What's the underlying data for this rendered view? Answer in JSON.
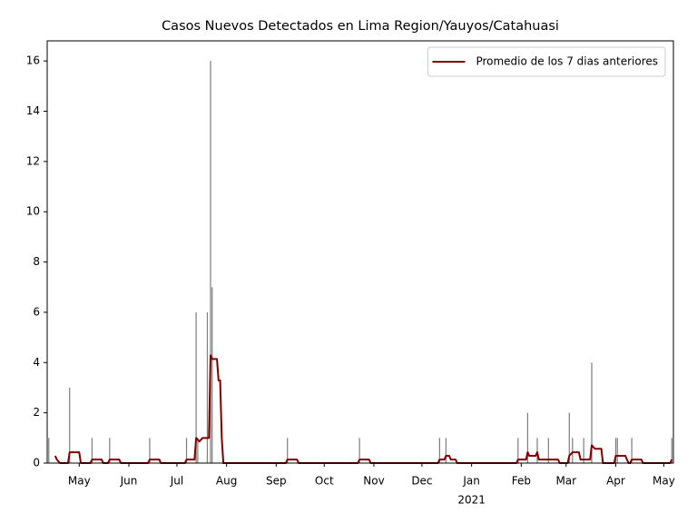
{
  "chart_data": {
    "type": "combo",
    "title": "Casos Nuevos Detectados en Lima Region/Yauyos/Catahuasi",
    "xlim": [
      "2020-04-11",
      "2021-05-07"
    ],
    "ylim": [
      0,
      16.8
    ],
    "yticks": [
      0,
      2,
      4,
      6,
      8,
      10,
      12,
      14,
      16
    ],
    "xticks": [
      {
        "value": "2020-05-01",
        "label": "May"
      },
      {
        "value": "2020-06-01",
        "label": "Jun"
      },
      {
        "value": "2020-07-01",
        "label": "Jul"
      },
      {
        "value": "2020-08-01",
        "label": "Aug"
      },
      {
        "value": "2020-09-01",
        "label": "Sep"
      },
      {
        "value": "2020-10-01",
        "label": "Oct"
      },
      {
        "value": "2020-11-01",
        "label": "Nov"
      },
      {
        "value": "2020-12-01",
        "label": "Dec"
      },
      {
        "value": "2021-01-01",
        "label": "Jan",
        "label2": "2021"
      },
      {
        "value": "2021-02-01",
        "label": "Feb"
      },
      {
        "value": "2021-03-01",
        "label": "Mar"
      },
      {
        "value": "2021-04-01",
        "label": "Apr"
      },
      {
        "value": "2021-05-01",
        "label": "May"
      }
    ],
    "legend": "upper right",
    "series": [
      {
        "type": "bar",
        "color": "#808080",
        "x": [
          "2020-04-12",
          "2020-04-25",
          "2020-05-09",
          "2020-05-20",
          "2020-06-14",
          "2020-07-07",
          "2020-07-13",
          "2020-07-14",
          "2020-07-20",
          "2020-07-22",
          "2020-07-23",
          "2020-09-08",
          "2020-10-23",
          "2020-12-12",
          "2020-12-16",
          "2021-01-30",
          "2021-02-05",
          "2021-02-11",
          "2021-02-18",
          "2021-03-03",
          "2021-03-05",
          "2021-03-12",
          "2021-03-17",
          "2021-04-01",
          "2021-04-02",
          "2021-04-11",
          "2021-05-06"
        ],
        "values": [
          1,
          3,
          1,
          1,
          1,
          1,
          6,
          1,
          6,
          16,
          7,
          1,
          1,
          1,
          1,
          1,
          2,
          1,
          1,
          2,
          1,
          1,
          4,
          1,
          1,
          1,
          1
        ]
      },
      {
        "type": "line",
        "name": "Promedio de los 7 dias anteriores",
        "color": "#800000",
        "x": [
          "2020-04-16",
          "2020-04-17",
          "2020-04-19",
          "2020-04-24",
          "2020-04-25",
          "2020-05-01",
          "2020-05-02",
          "2020-05-08",
          "2020-05-09",
          "2020-05-15",
          "2020-05-16",
          "2020-05-19",
          "2020-05-20",
          "2020-05-26",
          "2020-05-27",
          "2020-06-13",
          "2020-06-14",
          "2020-06-20",
          "2020-06-21",
          "2020-07-06",
          "2020-07-07",
          "2020-07-12",
          "2020-07-13",
          "2020-07-15",
          "2020-07-17",
          "2020-07-21",
          "2020-07-22",
          "2020-07-23",
          "2020-07-26",
          "2020-07-27",
          "2020-07-28",
          "2020-07-29",
          "2020-07-30",
          "2020-09-07",
          "2020-09-08",
          "2020-09-14",
          "2020-09-15",
          "2020-10-22",
          "2020-10-23",
          "2020-10-29",
          "2020-10-30",
          "2020-12-11",
          "2020-12-12",
          "2020-12-15",
          "2020-12-16",
          "2020-12-18",
          "2020-12-19",
          "2020-12-22",
          "2020-12-23",
          "2021-01-29",
          "2021-01-30",
          "2021-02-04",
          "2021-02-05",
          "2021-02-06",
          "2021-02-10",
          "2021-02-11",
          "2021-02-12",
          "2021-02-24",
          "2021-02-25",
          "2021-03-02",
          "2021-03-03",
          "2021-03-05",
          "2021-03-09",
          "2021-03-10",
          "2021-03-16",
          "2021-03-17",
          "2021-03-19",
          "2021-03-23",
          "2021-03-24",
          "2021-03-31",
          "2021-04-01",
          "2021-04-07",
          "2021-04-08",
          "2021-04-09",
          "2021-04-10",
          "2021-04-11",
          "2021-04-17",
          "2021-04-18",
          "2021-05-05",
          "2021-05-06"
        ],
        "values": [
          0.29,
          0.14,
          0,
          0,
          0.43,
          0.43,
          0,
          0,
          0.14,
          0.14,
          0,
          0,
          0.14,
          0.14,
          0,
          0,
          0.14,
          0.14,
          0,
          0,
          0.14,
          0.14,
          1.0,
          0.86,
          1.0,
          1.0,
          4.29,
          4.14,
          4.14,
          3.29,
          3.29,
          1.0,
          0,
          0,
          0.14,
          0.14,
          0,
          0,
          0.14,
          0.14,
          0,
          0,
          0.14,
          0.14,
          0.29,
          0.29,
          0.14,
          0.14,
          0,
          0,
          0.14,
          0.14,
          0.43,
          0.29,
          0.29,
          0.43,
          0.14,
          0.14,
          0,
          0,
          0.29,
          0.43,
          0.43,
          0.14,
          0.14,
          0.71,
          0.57,
          0.57,
          0,
          0,
          0.29,
          0.29,
          0.14,
          0,
          0,
          0.14,
          0.14,
          0,
          0,
          0.14
        ]
      }
    ]
  }
}
